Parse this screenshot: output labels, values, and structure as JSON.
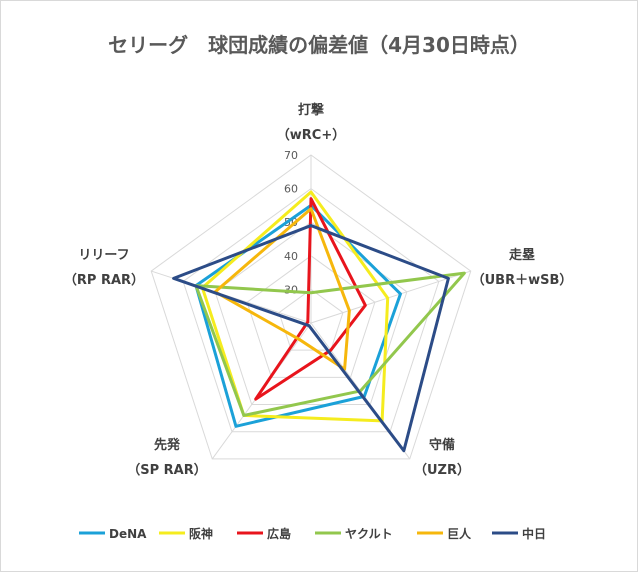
{
  "chart_data": {
    "type": "radar",
    "title": "セリーグ　球団成績の偏差値（4月30日時点）",
    "axes": [
      {
        "label": "打撃",
        "sublabel": "（wRC+）"
      },
      {
        "label": "走塁",
        "sublabel": "（UBR＋wSB）"
      },
      {
        "label": "守備",
        "sublabel": "（UZR）"
      },
      {
        "label": "先発",
        "sublabel": "（SP RAR）"
      },
      {
        "label": "リリーフ",
        "sublabel": "（RP RAR）"
      }
    ],
    "range": [
      20,
      70
    ],
    "ticks": [
      30,
      40,
      50,
      60,
      70
    ],
    "series": [
      {
        "name": "DeNA",
        "color": "#1ba1d8",
        "values": [
          55,
          48,
          47,
          58,
          56
        ]
      },
      {
        "name": "阪神",
        "color": "#f5ec1e",
        "values": [
          59,
          44,
          56,
          54,
          54
        ]
      },
      {
        "name": "広島",
        "color": "#e8141c",
        "values": [
          57,
          37,
          30,
          48,
          21
        ]
      },
      {
        "name": "ヤクルト",
        "color": "#92c74d",
        "values": [
          29,
          68,
          45,
          54,
          56
        ]
      },
      {
        "name": "巨人",
        "color": "#f6b70c",
        "values": [
          54,
          32,
          37,
          26,
          50
        ]
      },
      {
        "name": "中日",
        "color": "#2c4c87",
        "values": [
          49,
          63,
          67,
          21,
          63
        ]
      }
    ],
    "legend_position": "bottom",
    "grid": true
  }
}
